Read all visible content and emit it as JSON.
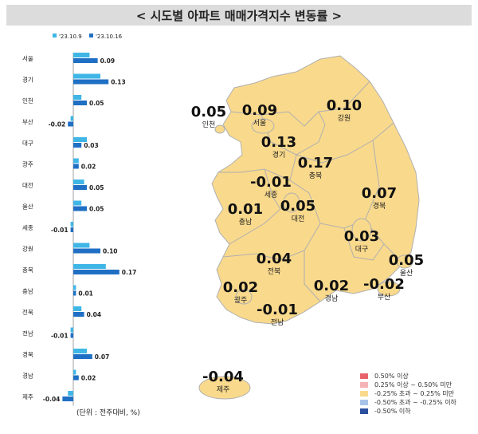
{
  "title": "< 시도별 아파트 매매가격지수 변동률 >",
  "unit_note": "(단위 : 전주대비, %)",
  "colors": {
    "prev": "#3fb6e6",
    "curr": "#1f6fc4",
    "map_fill": "#f9d98c",
    "map_stroke": "#b0b0b0"
  },
  "chart_data": {
    "type": "bar",
    "orientation": "horizontal",
    "categories": [
      "서울",
      "경기",
      "인천",
      "부산",
      "대구",
      "광주",
      "대전",
      "울산",
      "세종",
      "강원",
      "충북",
      "충남",
      "전북",
      "전남",
      "경북",
      "경남",
      "제주"
    ],
    "series": [
      {
        "name": "'23.10.9",
        "values": [
          0.06,
          0.1,
          0.03,
          -0.01,
          0.05,
          0.02,
          0.04,
          0.03,
          -0.01,
          0.06,
          0.12,
          0.01,
          0.03,
          -0.01,
          0.05,
          0.01,
          -0.02
        ]
      },
      {
        "name": "'23.10.16",
        "values": [
          0.09,
          0.13,
          0.05,
          -0.02,
          0.03,
          0.02,
          0.05,
          0.05,
          -0.01,
          0.1,
          0.17,
          0.01,
          0.04,
          -0.01,
          0.07,
          0.02,
          -0.04
        ]
      }
    ],
    "data_labels": [
      "0.09",
      "0.13",
      "0.05",
      "-0.02",
      "0.03",
      "0.02",
      "0.05",
      "0.05",
      "-0.01",
      "0.10",
      "0.17",
      "0.01",
      "0.04",
      "-0.01",
      "0.07",
      "0.02",
      "-0.04"
    ]
  },
  "map": {
    "regions": [
      {
        "name": "인천",
        "value": "0.05"
      },
      {
        "name": "서울",
        "value": "0.09"
      },
      {
        "name": "강원",
        "value": "0.10"
      },
      {
        "name": "경기",
        "value": "0.13"
      },
      {
        "name": "충북",
        "value": "0.17"
      },
      {
        "name": "세종",
        "value": "-0.01"
      },
      {
        "name": "경북",
        "value": "0.07"
      },
      {
        "name": "충남",
        "value": "0.01"
      },
      {
        "name": "대전",
        "value": "0.05"
      },
      {
        "name": "대구",
        "value": "0.03"
      },
      {
        "name": "전북",
        "value": "0.04"
      },
      {
        "name": "울산",
        "value": "0.05"
      },
      {
        "name": "광주",
        "value": "0.02"
      },
      {
        "name": "경남",
        "value": "0.02"
      },
      {
        "name": "부산",
        "value": "-0.02"
      },
      {
        "name": "전남",
        "value": "-0.01"
      },
      {
        "name": "제주",
        "value": "-0.04"
      }
    ],
    "legend": [
      {
        "label": "0.50% 이상",
        "color": "#e8646c"
      },
      {
        "label": "0.25% 이상 ~ 0.50% 미만",
        "color": "#f4b3b5"
      },
      {
        "label": "-0.25% 초과 ~ 0.25% 미만",
        "color": "#f9d98c"
      },
      {
        "label": "-0.50% 초과 ~ -0.25% 이하",
        "color": "#a9c4e8"
      },
      {
        "label": "-0.50% 이하",
        "color": "#2c4f9e"
      }
    ]
  }
}
